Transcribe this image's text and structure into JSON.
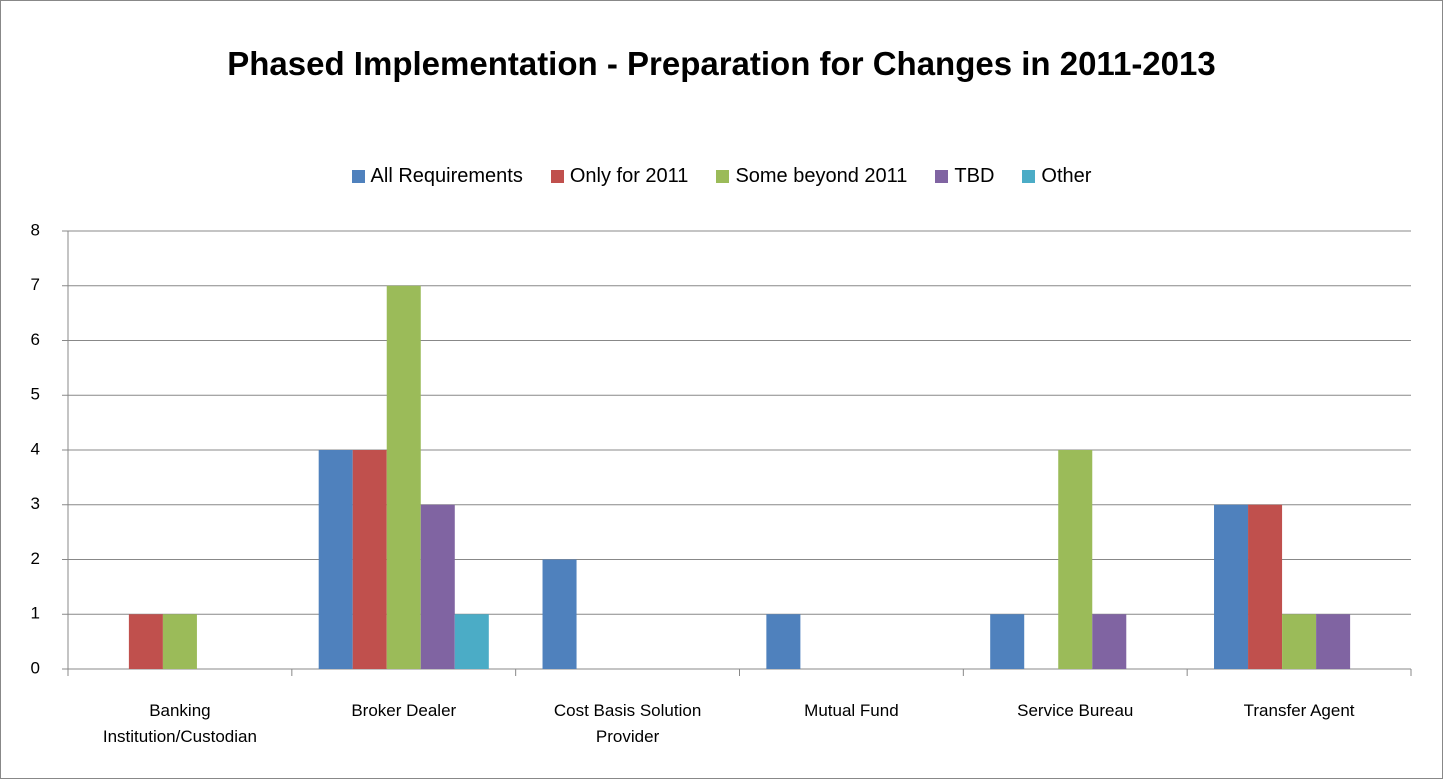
{
  "chart_data": {
    "type": "bar",
    "title": "Phased Implementation - Preparation for Changes in 2011-2013",
    "categories": [
      "Banking Institution/Custodian",
      "Broker Dealer",
      "Cost Basis Solution Provider",
      "Mutual Fund",
      "Service Bureau",
      "Transfer Agent"
    ],
    "series": [
      {
        "name": "All Requirements",
        "color": "#4f81bd",
        "values": [
          0,
          4,
          2,
          1,
          1,
          3
        ]
      },
      {
        "name": "Only for 2011",
        "color": "#c0504d",
        "values": [
          1,
          4,
          0,
          0,
          0,
          3
        ]
      },
      {
        "name": "Some beyond 2011",
        "color": "#9bbb59",
        "values": [
          1,
          7,
          0,
          0,
          4,
          1
        ]
      },
      {
        "name": "TBD",
        "color": "#8064a2",
        "values": [
          0,
          3,
          0,
          0,
          1,
          1
        ]
      },
      {
        "name": "Other",
        "color": "#4bacc6",
        "values": [
          0,
          1,
          0,
          0,
          0,
          0
        ]
      }
    ],
    "ylim": [
      0,
      8
    ],
    "yticks": [
      0,
      1,
      2,
      3,
      4,
      5,
      6,
      7,
      8
    ],
    "grid": true,
    "legend": "top"
  }
}
